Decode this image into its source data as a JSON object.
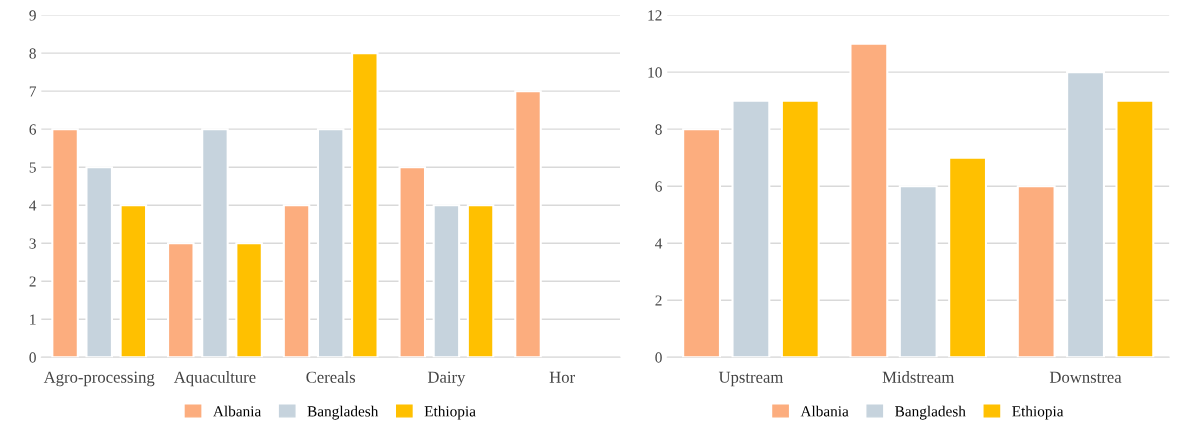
{
  "chart_data": [
    {
      "type": "bar",
      "categories": [
        "Agro-processing",
        "Aquaculture",
        "Cereals",
        "Dairy",
        "Hor"
      ],
      "ylim": [
        0,
        9
      ],
      "yticks": [
        0,
        1,
        2,
        3,
        4,
        5,
        6,
        7,
        8,
        9
      ],
      "grid": "y",
      "legend": "bottom",
      "series": [
        {
          "name": "Albania",
          "color": "#fcad7e",
          "values": [
            6,
            3,
            4,
            5,
            7
          ]
        },
        {
          "name": "Bangladesh",
          "color": "#c6d3dd",
          "values": [
            5,
            6,
            6,
            4,
            null
          ]
        },
        {
          "name": "Ethiopia",
          "color": "#ffc000",
          "values": [
            4,
            3,
            8,
            4,
            null
          ]
        }
      ]
    },
    {
      "type": "bar",
      "categories": [
        "Upstream",
        "Midstream",
        "Downstrea"
      ],
      "ylim": [
        0,
        12
      ],
      "yticks": [
        0,
        2,
        4,
        6,
        8,
        10,
        12
      ],
      "grid": "y",
      "legend": "bottom",
      "series": [
        {
          "name": "Albania",
          "color": "#fcad7e",
          "values": [
            8,
            11,
            6
          ]
        },
        {
          "name": "Bangladesh",
          "color": "#c6d3dd",
          "values": [
            9,
            6,
            10
          ]
        },
        {
          "name": "Ethiopia",
          "color": "#ffc000",
          "values": [
            9,
            7,
            9
          ]
        }
      ]
    }
  ]
}
